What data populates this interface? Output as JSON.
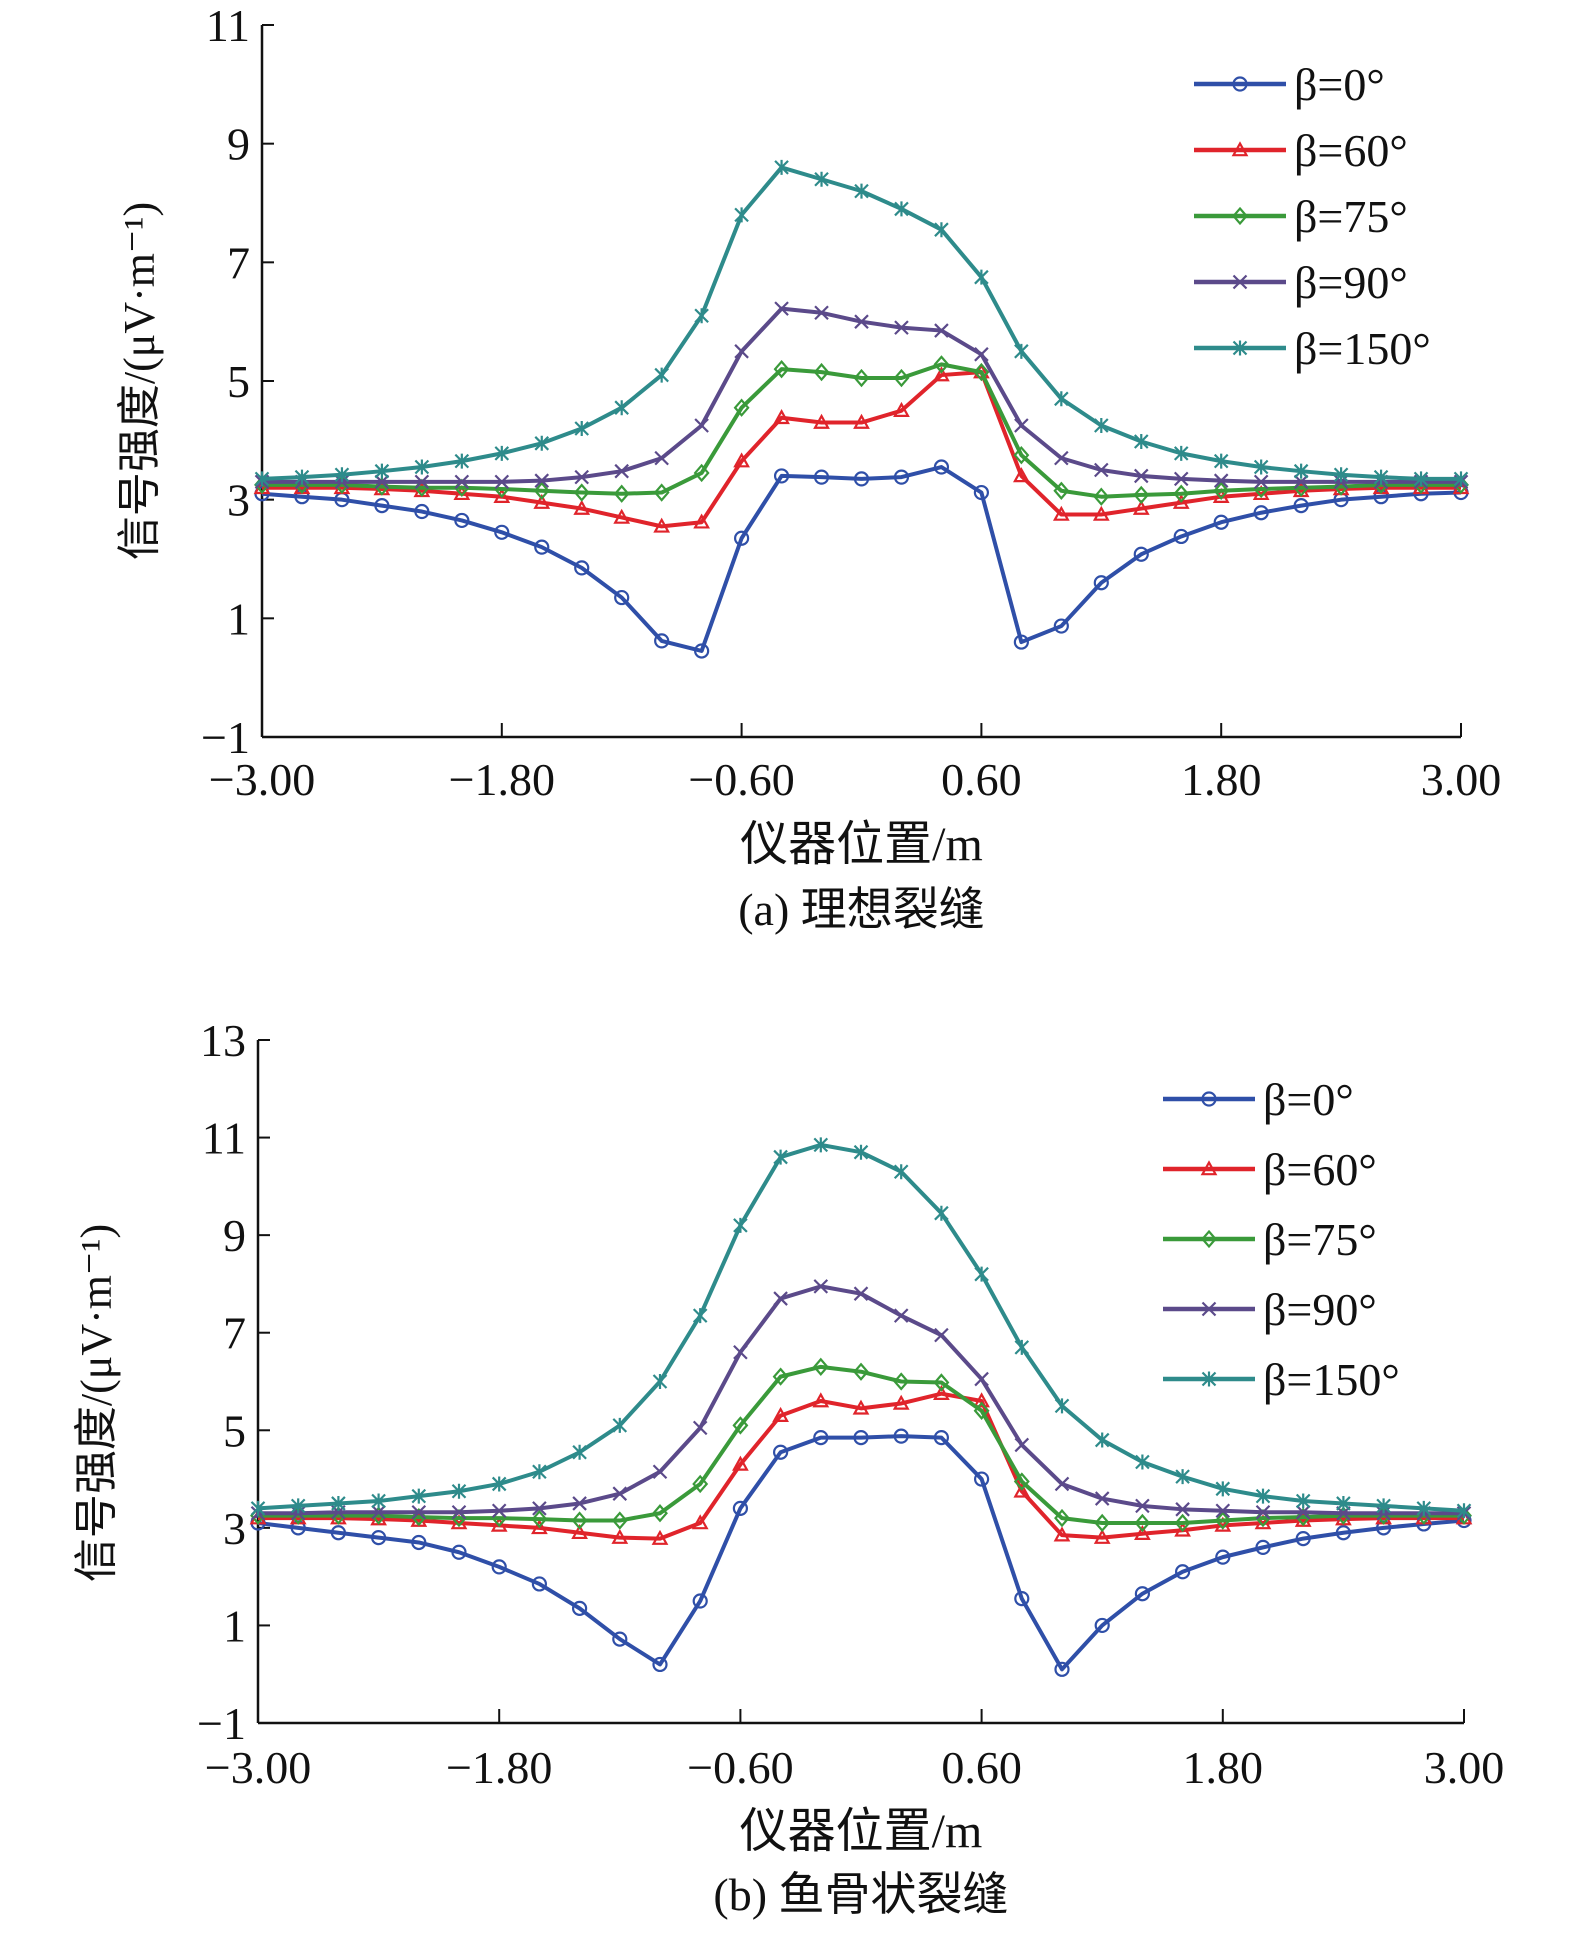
{
  "colors": {
    "b0": "#2f4fa8",
    "b60": "#e0242b",
    "b75": "#3a9a3a",
    "b90": "#5b4a8a",
    "b150": "#2e8b8b"
  },
  "chart_data": [
    {
      "type": "line",
      "caption": "(a) 理想裂缝",
      "xlabel": "仪器位置/m",
      "ylabel": "信号强度/(μV·m⁻¹)",
      "xlim": [
        -3,
        3
      ],
      "ylim": [
        -1,
        11
      ],
      "xticks": [
        "-3.00",
        "-1.80",
        "-0.60",
        "0.60",
        "1.80",
        "3.00"
      ],
      "xtick_values": [
        -3,
        -1.8,
        -0.6,
        0.6,
        1.8,
        3
      ],
      "yticks": [
        -1,
        1,
        3,
        5,
        7,
        9,
        11
      ],
      "legend_position": "top-right",
      "x": [
        -3,
        -2.8,
        -2.6,
        -2.4,
        -2.2,
        -2,
        -1.8,
        -1.6,
        -1.4,
        -1.2,
        -1,
        -0.8,
        -0.6,
        -0.4,
        -0.2,
        0,
        0.2,
        0.4,
        0.6,
        0.8,
        1,
        1.2,
        1.4,
        1.6,
        1.8,
        2,
        2.2,
        2.4,
        2.6,
        2.8,
        3
      ],
      "series": [
        {
          "name": "β=0°",
          "marker": "circle",
          "color_key": "b0",
          "values": [
            3.1,
            3.05,
            3.0,
            2.9,
            2.8,
            2.65,
            2.45,
            2.2,
            1.85,
            1.35,
            0.62,
            0.45,
            2.35,
            3.4,
            3.38,
            3.35,
            3.38,
            3.55,
            3.12,
            0.6,
            0.87,
            1.6,
            2.08,
            2.38,
            2.62,
            2.78,
            2.9,
            3.0,
            3.05,
            3.1,
            3.12
          ]
        },
        {
          "name": "β=60°",
          "marker": "triangle",
          "color_key": "b60",
          "values": [
            3.2,
            3.2,
            3.2,
            3.18,
            3.15,
            3.1,
            3.05,
            2.95,
            2.85,
            2.7,
            2.55,
            2.62,
            3.65,
            4.38,
            4.3,
            4.3,
            4.5,
            5.1,
            5.15,
            3.4,
            2.75,
            2.75,
            2.85,
            2.95,
            3.05,
            3.1,
            3.15,
            3.18,
            3.2,
            3.2,
            3.2
          ]
        },
        {
          "name": "β=75°",
          "marker": "diamond",
          "color_key": "b75",
          "values": [
            3.25,
            3.25,
            3.25,
            3.22,
            3.2,
            3.2,
            3.18,
            3.15,
            3.12,
            3.1,
            3.12,
            3.45,
            4.55,
            5.2,
            5.15,
            5.05,
            5.05,
            5.28,
            5.15,
            3.75,
            3.15,
            3.05,
            3.08,
            3.1,
            3.15,
            3.18,
            3.2,
            3.22,
            3.25,
            3.25,
            3.25
          ]
        },
        {
          "name": "β=90°",
          "marker": "x",
          "color_key": "b90",
          "values": [
            3.3,
            3.3,
            3.3,
            3.3,
            3.3,
            3.3,
            3.3,
            3.32,
            3.38,
            3.48,
            3.7,
            4.25,
            5.5,
            6.22,
            6.15,
            6.0,
            5.9,
            5.85,
            5.45,
            4.25,
            3.7,
            3.5,
            3.4,
            3.35,
            3.32,
            3.3,
            3.3,
            3.3,
            3.3,
            3.3,
            3.3
          ]
        },
        {
          "name": "β=150°",
          "marker": "star",
          "color_key": "b150",
          "values": [
            3.35,
            3.38,
            3.42,
            3.48,
            3.55,
            3.65,
            3.78,
            3.95,
            4.2,
            4.55,
            5.1,
            6.1,
            7.8,
            8.6,
            8.4,
            8.2,
            7.9,
            7.55,
            6.75,
            5.5,
            4.7,
            4.25,
            3.98,
            3.78,
            3.65,
            3.55,
            3.48,
            3.42,
            3.38,
            3.35,
            3.35
          ]
        }
      ]
    },
    {
      "type": "line",
      "caption": "(b) 鱼骨状裂缝",
      "xlabel": "仪器位置/m",
      "ylabel": "信号强度/(μV·m⁻¹)",
      "xlim": [
        -3,
        3
      ],
      "ylim": [
        -1,
        13
      ],
      "xticks": [
        "-3.00",
        "-1.80",
        "-0.60",
        "0.60",
        "1.80",
        "3.00"
      ],
      "xtick_values": [
        -3,
        -1.8,
        -0.6,
        0.6,
        1.8,
        3
      ],
      "yticks": [
        -1,
        1,
        3,
        5,
        7,
        9,
        11,
        13
      ],
      "legend_position": "top-right",
      "x": [
        -3,
        -2.8,
        -2.6,
        -2.4,
        -2.2,
        -2,
        -1.8,
        -1.6,
        -1.4,
        -1.2,
        -1,
        -0.8,
        -0.6,
        -0.4,
        -0.2,
        0,
        0.2,
        0.4,
        0.6,
        0.8,
        1,
        1.2,
        1.4,
        1.6,
        1.8,
        2,
        2.2,
        2.4,
        2.6,
        2.8,
        3
      ],
      "series": [
        {
          "name": "β=0°",
          "marker": "circle",
          "color_key": "b0",
          "values": [
            3.1,
            3.0,
            2.9,
            2.8,
            2.7,
            2.5,
            2.2,
            1.85,
            1.35,
            0.72,
            0.2,
            1.5,
            3.4,
            4.55,
            4.85,
            4.85,
            4.88,
            4.85,
            4.0,
            1.55,
            0.1,
            1.0,
            1.65,
            2.1,
            2.4,
            2.6,
            2.78,
            2.9,
            3.0,
            3.08,
            3.15
          ]
        },
        {
          "name": "β=60°",
          "marker": "triangle",
          "color_key": "b60",
          "values": [
            3.2,
            3.2,
            3.2,
            3.18,
            3.15,
            3.1,
            3.05,
            3.0,
            2.9,
            2.8,
            2.78,
            3.1,
            4.3,
            5.3,
            5.6,
            5.45,
            5.55,
            5.75,
            5.6,
            3.75,
            2.85,
            2.8,
            2.88,
            2.95,
            3.05,
            3.1,
            3.15,
            3.18,
            3.2,
            3.2,
            3.2
          ]
        },
        {
          "name": "β=75°",
          "marker": "diamond",
          "color_key": "b75",
          "values": [
            3.25,
            3.25,
            3.25,
            3.25,
            3.22,
            3.2,
            3.2,
            3.18,
            3.15,
            3.15,
            3.3,
            3.9,
            5.1,
            6.1,
            6.3,
            6.2,
            6.0,
            5.98,
            5.4,
            3.95,
            3.2,
            3.1,
            3.1,
            3.1,
            3.15,
            3.2,
            3.22,
            3.25,
            3.25,
            3.25,
            3.25
          ]
        },
        {
          "name": "β=90°",
          "marker": "x",
          "color_key": "b90",
          "values": [
            3.3,
            3.3,
            3.32,
            3.32,
            3.32,
            3.32,
            3.35,
            3.4,
            3.5,
            3.7,
            4.15,
            5.05,
            6.6,
            7.7,
            7.95,
            7.8,
            7.35,
            6.95,
            6.05,
            4.7,
            3.9,
            3.6,
            3.45,
            3.38,
            3.35,
            3.32,
            3.32,
            3.3,
            3.3,
            3.3,
            3.3
          ]
        },
        {
          "name": "β=150°",
          "marker": "star",
          "color_key": "b150",
          "values": [
            3.4,
            3.45,
            3.5,
            3.55,
            3.65,
            3.75,
            3.9,
            4.15,
            4.55,
            5.1,
            6.0,
            7.35,
            9.2,
            10.6,
            10.85,
            10.7,
            10.3,
            9.45,
            8.2,
            6.7,
            5.5,
            4.8,
            4.35,
            4.05,
            3.8,
            3.65,
            3.55,
            3.5,
            3.45,
            3.4,
            3.35
          ]
        }
      ]
    }
  ]
}
